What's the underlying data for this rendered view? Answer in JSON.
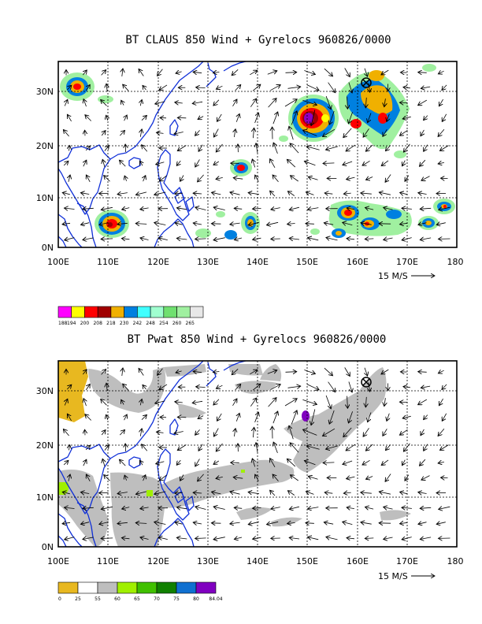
{
  "panels": [
    {
      "title": "BT CLAUS 850 Wind + Gyrelocs 960826/0000",
      "lat_labels": [
        "30N",
        "20N",
        "10N",
        "0N"
      ],
      "lon_labels": [
        "100E",
        "110E",
        "120E",
        "130E",
        "140E",
        "150E",
        "160E",
        "170E",
        "180"
      ],
      "wind_scale_label": "15 M/S",
      "colorbar_labels": [
        "188",
        "194",
        "200",
        "208",
        "218",
        "230",
        "242",
        "248",
        "254",
        "260",
        "265"
      ],
      "colorbar_colors": [
        "#ff00ff",
        "#ffff00",
        "#ff0000",
        "#a00000",
        "#f0b000",
        "#0080e0",
        "#40ffff",
        "#a0ffd0",
        "#70e070",
        "#a0f0a0",
        "#e8e8e8"
      ]
    },
    {
      "title": "BT Pwat 850 Wind + Gyrelocs 960826/0000",
      "lat_labels": [
        "30N",
        "20N",
        "10N",
        "0N"
      ],
      "lon_labels": [
        "100E",
        "110E",
        "120E",
        "130E",
        "140E",
        "150E",
        "160E",
        "170E",
        "180"
      ],
      "wind_scale_label": "15 M/S",
      "colorbar_labels": [
        "0",
        "25",
        "55",
        "60",
        "65",
        "70",
        "75",
        "80",
        "84.04"
      ],
      "colorbar_colors": [
        "#e8b820",
        "#ffffff",
        "#bebebe",
        "#a0f000",
        "#40c000",
        "#108000",
        "#1070d0",
        "#8000c0"
      ]
    }
  ],
  "icons": {
    "gyre_location": "circled-x-icon",
    "wind_vector": "arrow-icon"
  }
}
